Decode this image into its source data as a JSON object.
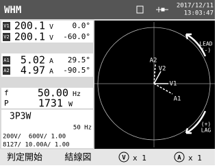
{
  "header": {
    "title": "WHM",
    "date": "2017/12/11",
    "time": "13:03:47"
  },
  "measurements": [
    {
      "badge": "V1",
      "value": "200.1",
      "unit": "V",
      "angle": "0.0°"
    },
    {
      "badge": "V2",
      "value": "200.1",
      "unit": "V",
      "angle": "-60.0°"
    },
    {
      "badge": "A1",
      "value": "5.02",
      "unit": "A",
      "angle": "29.5°"
    },
    {
      "badge": "A2",
      "value": "4.97",
      "unit": "A",
      "angle": "-90.5°"
    }
  ],
  "frequency": {
    "label": "f",
    "value": "50.00",
    "unit": "Hz"
  },
  "power": {
    "label": "P",
    "value": "1731",
    "unit": "W"
  },
  "settings": {
    "wiring": "3P3W",
    "freq": "50 Hz",
    "voltage": "200V/  600V/ 1.00",
    "current": "8127/ 10.00A/ 1.00"
  },
  "phasor": {
    "labels": [
      "A2",
      "V2",
      "V1",
      "A1"
    ],
    "lead": "LEAD",
    "lead_sign": "(-)",
    "lag": "LAG",
    "lag_sign": "(+)"
  },
  "footer": {
    "start": "判定開始",
    "wiring": "結線図",
    "v_icon": "V",
    "v_range": "x 1",
    "a_icon": "A",
    "a_range": "x 1"
  }
}
